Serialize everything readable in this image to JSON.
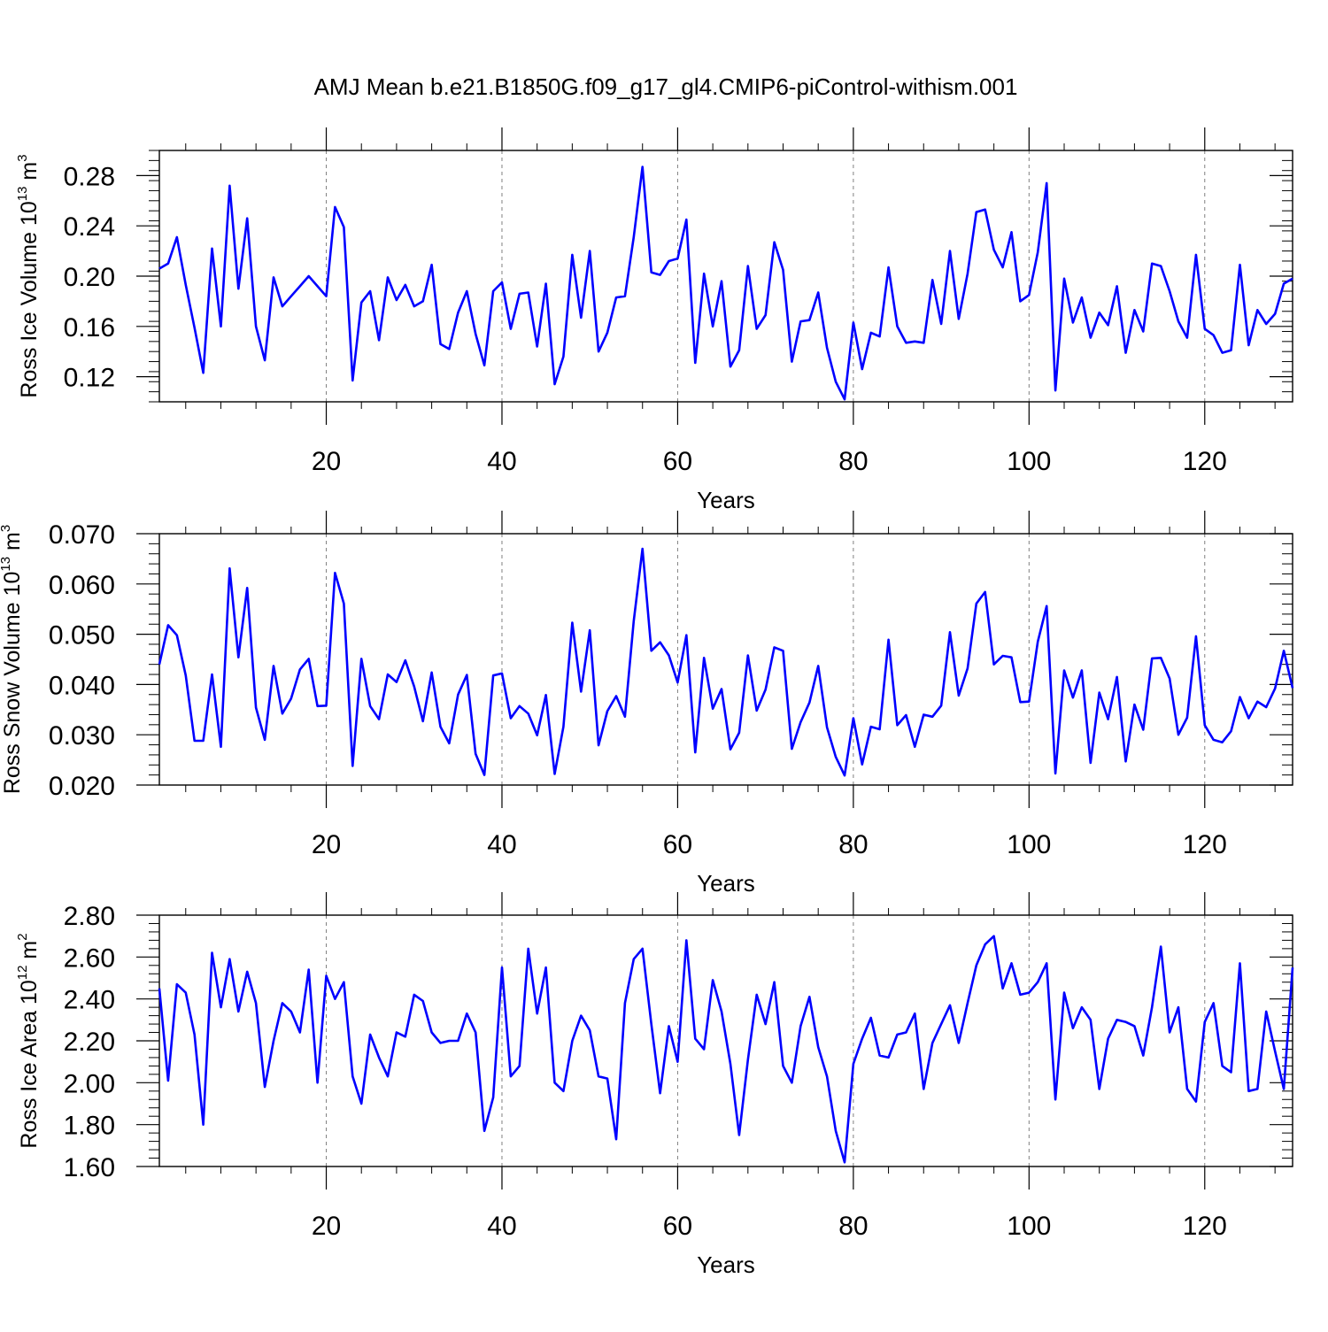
{
  "title": "AMJ Mean b.e21.B1850G.f09_g17_gl4.CMIP6-piControl-withism.001",
  "colors": {
    "line": "#0000ff",
    "axis": "#000000",
    "grid": "#808080"
  },
  "chart_data": [
    {
      "type": "line",
      "xlabel": "Years",
      "ylabel": {
        "text": "Ross Ice Volume 10",
        "sup": "13",
        "unit": " m",
        "unit_sup": "3"
      },
      "xlim": [
        1,
        130
      ],
      "ylim": [
        0.1,
        0.3
      ],
      "xticks": [
        20,
        40,
        60,
        80,
        100,
        120
      ],
      "xtick_labels": [
        "20",
        "40",
        "60",
        "80",
        "100",
        "120"
      ],
      "yticks": [
        0.12,
        0.16,
        0.2,
        0.24,
        0.28
      ],
      "ytick_labels": [
        "0.12",
        "0.16",
        "0.20",
        "0.24",
        "0.28"
      ],
      "grid_x": true,
      "grid_y": false,
      "x_start": 1,
      "values": [
        0.206,
        0.21,
        0.231,
        0.193,
        0.159,
        0.123,
        0.222,
        0.16,
        0.272,
        0.19,
        0.246,
        0.16,
        0.133,
        0.199,
        0.176,
        0.184,
        0.192,
        0.2,
        0.192,
        0.184,
        0.255,
        0.239,
        0.117,
        0.179,
        0.188,
        0.149,
        0.199,
        0.181,
        0.193,
        0.176,
        0.18,
        0.209,
        0.146,
        0.142,
        0.171,
        0.188,
        0.154,
        0.129,
        0.188,
        0.195,
        0.158,
        0.186,
        0.187,
        0.144,
        0.194,
        0.114,
        0.136,
        0.217,
        0.167,
        0.22,
        0.14,
        0.155,
        0.183,
        0.184,
        0.231,
        0.287,
        0.203,
        0.201,
        0.212,
        0.214,
        0.245,
        0.131,
        0.202,
        0.16,
        0.196,
        0.128,
        0.141,
        0.208,
        0.158,
        0.169,
        0.227,
        0.205,
        0.132,
        0.164,
        0.165,
        0.187,
        0.143,
        0.116,
        0.102,
        0.163,
        0.126,
        0.155,
        0.152,
        0.207,
        0.16,
        0.147,
        0.148,
        0.147,
        0.197,
        0.162,
        0.22,
        0.166,
        0.202,
        0.251,
        0.253,
        0.221,
        0.207,
        0.235,
        0.18,
        0.185,
        0.219,
        0.274,
        0.109,
        0.198,
        0.163,
        0.183,
        0.151,
        0.171,
        0.161,
        0.192,
        0.139,
        0.173,
        0.156,
        0.21,
        0.208,
        0.188,
        0.164,
        0.151,
        0.217,
        0.158,
        0.153,
        0.139,
        0.141,
        0.209,
        0.145,
        0.173,
        0.162,
        0.17,
        0.194,
        0.198
      ]
    },
    {
      "type": "line",
      "xlabel": "Years",
      "ylabel": {
        "text": "Ross Snow Volume 10",
        "sup": "13",
        "unit": " m",
        "unit_sup": "3"
      },
      "xlim": [
        1,
        130
      ],
      "ylim": [
        0.02,
        0.07
      ],
      "xticks": [
        20,
        40,
        60,
        80,
        100,
        120
      ],
      "xtick_labels": [
        "20",
        "40",
        "60",
        "80",
        "100",
        "120"
      ],
      "yticks": [
        0.02,
        0.03,
        0.04,
        0.05,
        0.06,
        0.07
      ],
      "ytick_labels": [
        "0.020",
        "0.030",
        "0.040",
        "0.050",
        "0.060",
        "0.070"
      ],
      "grid_x": true,
      "grid_y": false,
      "x_start": 1,
      "values": [
        0.044,
        0.0518,
        0.0498,
        0.0418,
        0.0288,
        0.0288,
        0.042,
        0.0276,
        0.0631,
        0.0454,
        0.0592,
        0.0354,
        0.029,
        0.0437,
        0.0342,
        0.0372,
        0.043,
        0.0451,
        0.0357,
        0.0358,
        0.0622,
        0.0561,
        0.0238,
        0.0451,
        0.0357,
        0.0331,
        0.042,
        0.0405,
        0.0448,
        0.0396,
        0.0327,
        0.0424,
        0.0316,
        0.0283,
        0.038,
        0.0419,
        0.0262,
        0.022,
        0.0418,
        0.0422,
        0.0333,
        0.0357,
        0.0342,
        0.0299,
        0.0379,
        0.0222,
        0.0316,
        0.0523,
        0.0386,
        0.0508,
        0.0279,
        0.0347,
        0.0377,
        0.0336,
        0.0526,
        0.067,
        0.0467,
        0.0484,
        0.0458,
        0.0404,
        0.0498,
        0.0265,
        0.0453,
        0.0352,
        0.0391,
        0.0271,
        0.0304,
        0.0458,
        0.0348,
        0.039,
        0.0474,
        0.0467,
        0.0272,
        0.0325,
        0.0364,
        0.0437,
        0.0315,
        0.0256,
        0.0219,
        0.0333,
        0.0241,
        0.0316,
        0.0311,
        0.0489,
        0.0319,
        0.0339,
        0.0276,
        0.034,
        0.0336,
        0.0358,
        0.0504,
        0.0378,
        0.0432,
        0.0561,
        0.0584,
        0.044,
        0.0457,
        0.0454,
        0.0365,
        0.0366,
        0.0485,
        0.0556,
        0.0223,
        0.0428,
        0.0374,
        0.0428,
        0.0244,
        0.0384,
        0.0331,
        0.0415,
        0.0247,
        0.036,
        0.031,
        0.0452,
        0.0453,
        0.0412,
        0.03,
        0.0334,
        0.0496,
        0.0319,
        0.029,
        0.0285,
        0.0307,
        0.0375,
        0.0333,
        0.0366,
        0.0355,
        0.0392,
        0.0467,
        0.0393
      ]
    },
    {
      "type": "line",
      "xlabel": "Years",
      "ylabel": {
        "text": "Ross Ice Area 10",
        "sup": "12",
        "unit": " m",
        "unit_sup": "2"
      },
      "xlim": [
        1,
        130
      ],
      "ylim": [
        1.6,
        2.8
      ],
      "xticks": [
        20,
        40,
        60,
        80,
        100,
        120
      ],
      "xtick_labels": [
        "20",
        "40",
        "60",
        "80",
        "100",
        "120"
      ],
      "yticks": [
        1.6,
        1.8,
        2.0,
        2.2,
        2.4,
        2.6,
        2.8
      ],
      "ytick_labels": [
        "1.60",
        "1.80",
        "2.00",
        "2.20",
        "2.40",
        "2.60",
        "2.80"
      ],
      "grid_x": true,
      "grid_y": false,
      "x_start": 1,
      "values": [
        2.45,
        2.01,
        2.47,
        2.43,
        2.23,
        1.8,
        2.62,
        2.36,
        2.59,
        2.34,
        2.53,
        2.38,
        1.98,
        2.2,
        2.38,
        2.34,
        2.24,
        2.54,
        2.0,
        2.51,
        2.4,
        2.48,
        2.03,
        1.9,
        2.23,
        2.12,
        2.03,
        2.24,
        2.22,
        2.42,
        2.39,
        2.24,
        2.19,
        2.2,
        2.2,
        2.33,
        2.24,
        1.77,
        1.93,
        2.55,
        2.03,
        2.08,
        2.64,
        2.33,
        2.55,
        2.0,
        1.96,
        2.2,
        2.32,
        2.25,
        2.03,
        2.02,
        1.73,
        2.38,
        2.59,
        2.64,
        2.28,
        1.95,
        2.27,
        2.1,
        2.68,
        2.21,
        2.16,
        2.49,
        2.34,
        2.09,
        1.75,
        2.11,
        2.42,
        2.28,
        2.48,
        2.08,
        2.0,
        2.27,
        2.41,
        2.17,
        2.03,
        1.77,
        1.62,
        2.09,
        2.21,
        2.31,
        2.13,
        2.12,
        2.23,
        2.24,
        2.33,
        1.97,
        2.19,
        2.28,
        2.37,
        2.19,
        2.38,
        2.56,
        2.66,
        2.7,
        2.45,
        2.57,
        2.42,
        2.43,
        2.48,
        2.57,
        1.92,
        2.43,
        2.26,
        2.36,
        2.3,
        1.97,
        2.21,
        2.3,
        2.29,
        2.27,
        2.13,
        2.36,
        2.65,
        2.24,
        2.36,
        1.97,
        1.91,
        2.29,
        2.38,
        2.08,
        2.05,
        2.57,
        1.96,
        1.97,
        2.34,
        2.15,
        1.97,
        2.55
      ]
    }
  ]
}
